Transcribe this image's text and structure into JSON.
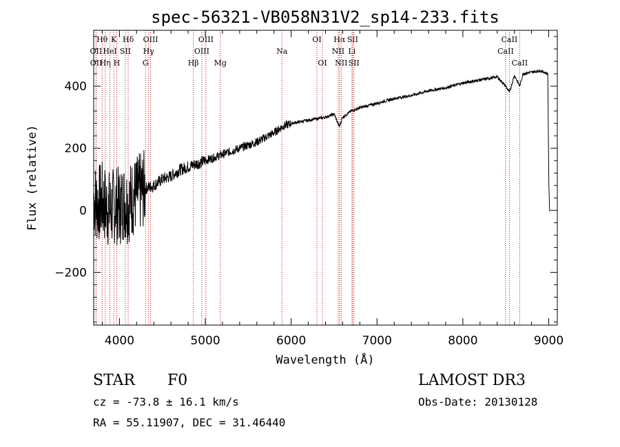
{
  "chart_data": {
    "type": "line",
    "title": "spec-56321-VB058N31V2_sp14-233.fits",
    "xlabel": "Wavelength (Å)",
    "ylabel": "Flux (relative)",
    "xlim": [
      3700,
      9100
    ],
    "ylim": [
      -370,
      580
    ],
    "xticks": [
      4000,
      5000,
      6000,
      7000,
      8000,
      9000
    ],
    "yticks": [
      -200,
      0,
      200,
      400
    ],
    "series": [
      {
        "name": "flux",
        "x": [
          3700,
          3740,
          3800,
          3850,
          3900,
          3950,
          4000,
          4050,
          4100,
          4150,
          4200,
          4300,
          4400,
          4500,
          4600,
          4700,
          4800,
          4900,
          5000,
          5100,
          5200,
          5300,
          5400,
          5500,
          5600,
          5700,
          5800,
          5900,
          6000,
          6100,
          6200,
          6300,
          6400,
          6500,
          6560,
          6600,
          6700,
          6800,
          7000,
          7200,
          7400,
          7600,
          7800,
          8000,
          8200,
          8400,
          8498,
          8542,
          8600,
          8662,
          8700,
          8800,
          8900,
          8990,
          9000,
          9010
        ],
        "y": [
          40,
          20,
          30,
          10,
          0,
          20,
          10,
          30,
          20,
          40,
          50,
          70,
          80,
          100,
          110,
          130,
          140,
          150,
          160,
          170,
          180,
          190,
          200,
          210,
          220,
          235,
          250,
          270,
          280,
          285,
          290,
          295,
          300,
          310,
          270,
          300,
          320,
          330,
          345,
          360,
          370,
          385,
          395,
          410,
          420,
          430,
          400,
          380,
          435,
          400,
          440,
          445,
          450,
          440,
          100,
          0
        ]
      }
    ],
    "lines": [
      {
        "name": "Hθ",
        "wave": 3798,
        "row": 1
      },
      {
        "name": "OII",
        "wave": 3727,
        "row": 2
      },
      {
        "name": "OII",
        "wave": 3729,
        "row": 3
      },
      {
        "name": "Hη",
        "wave": 3835,
        "row": 3
      },
      {
        "name": "HeI",
        "wave": 3889,
        "row": 2
      },
      {
        "name": "K",
        "wave": 3934,
        "row": 1
      },
      {
        "name": "H",
        "wave": 3969,
        "row": 3
      },
      {
        "name": "SII",
        "wave": 4069,
        "row": 2
      },
      {
        "name": "Hδ",
        "wave": 4102,
        "row": 1
      },
      {
        "name": "OIII",
        "wave": 4363,
        "row": 1
      },
      {
        "name": "Hγ",
        "wave": 4340,
        "row": 2
      },
      {
        "name": "G",
        "wave": 4304,
        "row": 3
      },
      {
        "name": "Hβ",
        "wave": 4861,
        "row": 3
      },
      {
        "name": "OIII",
        "wave": 4959,
        "row": 2
      },
      {
        "name": "OIII",
        "wave": 5007,
        "row": 1
      },
      {
        "name": "Mg",
        "wave": 5175,
        "row": 3
      },
      {
        "name": "Na",
        "wave": 5893,
        "row": 2
      },
      {
        "name": "OI",
        "wave": 6300,
        "row": 1
      },
      {
        "name": "OI",
        "wave": 6364,
        "row": 3
      },
      {
        "name": "Hα",
        "wave": 6563,
        "row": 1
      },
      {
        "name": "NII",
        "wave": 6548,
        "row": 2
      },
      {
        "name": "NII",
        "wave": 6583,
        "row": 3
      },
      {
        "name": "SII",
        "wave": 6716,
        "row": 1
      },
      {
        "name": "Li",
        "wave": 6708,
        "row": 2
      },
      {
        "name": "SII",
        "wave": 6731,
        "row": 3
      },
      {
        "name": "CaII",
        "wave": 8542,
        "row": 1
      },
      {
        "name": "CaII",
        "wave": 8498,
        "row": 2
      },
      {
        "name": "CaII",
        "wave": 8662,
        "row": 3
      }
    ]
  },
  "info": {
    "class": "STAR",
    "subclass": "F0",
    "survey": "LAMOST DR3",
    "cz": "cz = -73.8 ± 16.1 km/s",
    "obs_date": "Obs-Date: 20130128",
    "coords": "RA =  55.11907, DEC =  31.46440"
  },
  "colors": {
    "line_marker": "#cc0000",
    "spectrum": "#000000"
  }
}
